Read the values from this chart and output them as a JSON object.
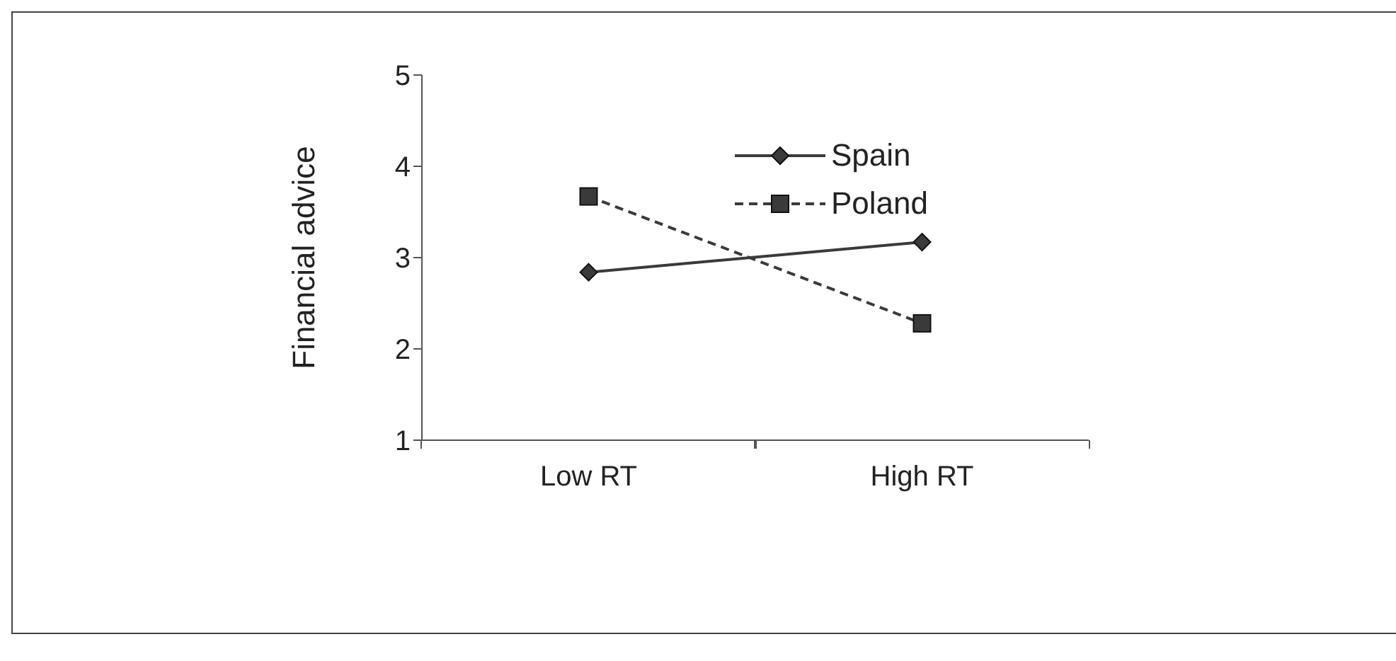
{
  "chart_data": {
    "type": "line",
    "ylabel": "Financial advice",
    "categories": [
      "Low RT",
      "High RT"
    ],
    "series": [
      {
        "name": "Spain",
        "color": "#3a3a3a",
        "values": [
          2.84,
          3.17
        ],
        "marker": "diamond",
        "line_style": "solid"
      },
      {
        "name": "Poland",
        "color": "#3a3a3a",
        "values": [
          3.67,
          2.28
        ],
        "marker": "square",
        "line_style": "dashed"
      }
    ],
    "ylim": [
      1,
      5
    ],
    "yticks": [
      1,
      2,
      3,
      4,
      5
    ],
    "grid": false,
    "legend": "top right"
  }
}
